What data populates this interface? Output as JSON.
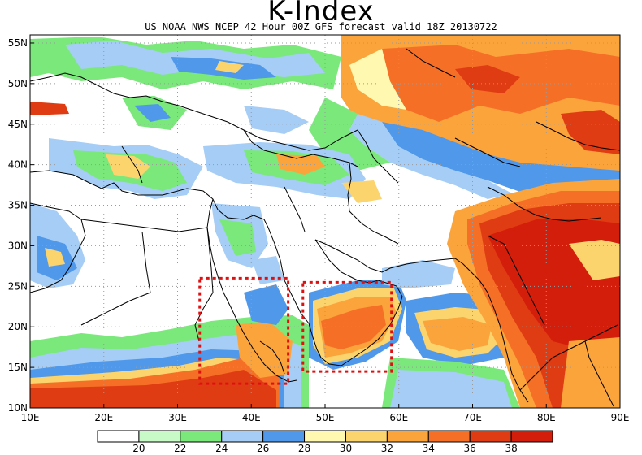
{
  "title": "K-Index",
  "subtitle": "US NOAA NWS NCEP 42 Hour 00Z GFS forecast valid 18Z 20130722",
  "map": {
    "lon_range": [
      10,
      90
    ],
    "lat_range": [
      10,
      56
    ],
    "lat_ticks": [
      {
        "value": 55,
        "label": "55N"
      },
      {
        "value": 50,
        "label": "50N"
      },
      {
        "value": 45,
        "label": "45N"
      },
      {
        "value": 40,
        "label": "40N"
      },
      {
        "value": 35,
        "label": "35N"
      },
      {
        "value": 30,
        "label": "30N"
      },
      {
        "value": 25,
        "label": "25N"
      },
      {
        "value": 20,
        "label": "20N"
      },
      {
        "value": 15,
        "label": "15N"
      },
      {
        "value": 10,
        "label": "10N"
      }
    ],
    "lon_ticks": [
      {
        "value": 10,
        "label": "10E"
      },
      {
        "value": 20,
        "label": "20E"
      },
      {
        "value": 30,
        "label": "30E"
      },
      {
        "value": 40,
        "label": "40E"
      },
      {
        "value": 50,
        "label": "50E"
      },
      {
        "value": 60,
        "label": "60E"
      },
      {
        "value": 70,
        "label": "70E"
      },
      {
        "value": 80,
        "label": "80E"
      },
      {
        "value": 90,
        "label": "90E"
      }
    ],
    "highlight_boxes": [
      {
        "lon": [
          33,
          45
        ],
        "lat": [
          13,
          26
        ]
      },
      {
        "lon": [
          47,
          59
        ],
        "lat": [
          14.5,
          25.5
        ]
      }
    ]
  },
  "legend": {
    "colors": [
      "#ffffff",
      "#c8fac8",
      "#7ae87a",
      "#a5cdf5",
      "#4f98ea",
      "#fff8b0",
      "#fcd46e",
      "#fca43c",
      "#f57026",
      "#e03c14",
      "#d41e0c"
    ],
    "labels": [
      "20",
      "22",
      "24",
      "26",
      "28",
      "30",
      "32",
      "34",
      "36",
      "38"
    ]
  },
  "colors": {
    "highlight_box": "#e01010",
    "coastline": "#000000",
    "grid": "#9a9a9a"
  }
}
